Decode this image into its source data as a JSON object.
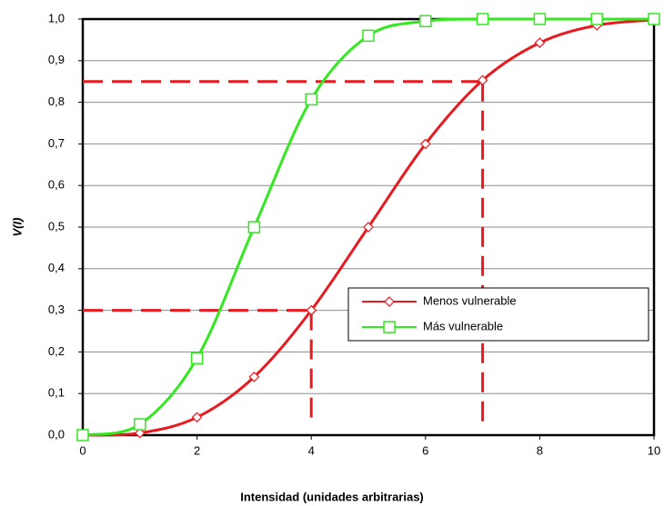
{
  "chart_data": {
    "type": "line",
    "xlabel": "Intensidad (unidades arbitrarias)",
    "ylabel": "V(I)",
    "x": [
      0,
      1,
      2,
      3,
      4,
      5,
      6,
      7,
      8,
      9,
      10
    ],
    "series": [
      {
        "name": "Menos vulnerable",
        "color": "#e8191f",
        "marker": "diamond",
        "values": [
          0,
          0.005,
          0.043,
          0.14,
          0.3,
          0.5,
          0.7,
          0.853,
          0.943,
          0.985,
          0.998
        ]
      },
      {
        "name": "Más vulnerable",
        "color": "#33e81f",
        "marker": "square",
        "values": [
          0,
          0.026,
          0.185,
          0.5,
          0.807,
          0.96,
          0.995,
          1.0,
          1.0,
          1.0,
          1.0
        ]
      }
    ],
    "reference_lines": [
      {
        "x": 4,
        "y": 0.3
      },
      {
        "x": 7,
        "y": 0.85
      }
    ],
    "reference_color": "#e8191f",
    "xlim": [
      0,
      10
    ],
    "xticks": [
      0,
      2,
      4,
      6,
      8,
      10
    ],
    "ylim": [
      0,
      1
    ],
    "yticks": [
      {
        "value": 0,
        "label": "0,0"
      },
      {
        "value": 0.1,
        "label": "0,1"
      },
      {
        "value": 0.2,
        "label": "0,2"
      },
      {
        "value": 0.3,
        "label": "0,3"
      },
      {
        "value": 0.4,
        "label": "0,4"
      },
      {
        "value": 0.5,
        "label": "0,5"
      },
      {
        "value": 0.6,
        "label": "0,6"
      },
      {
        "value": 0.7,
        "label": "0,7"
      },
      {
        "value": 0.8,
        "label": "0,8"
      },
      {
        "value": 0.9,
        "label": "0,9"
      },
      {
        "value": 1,
        "label": "1,0"
      }
    ],
    "grid": true,
    "legend": "center right"
  }
}
